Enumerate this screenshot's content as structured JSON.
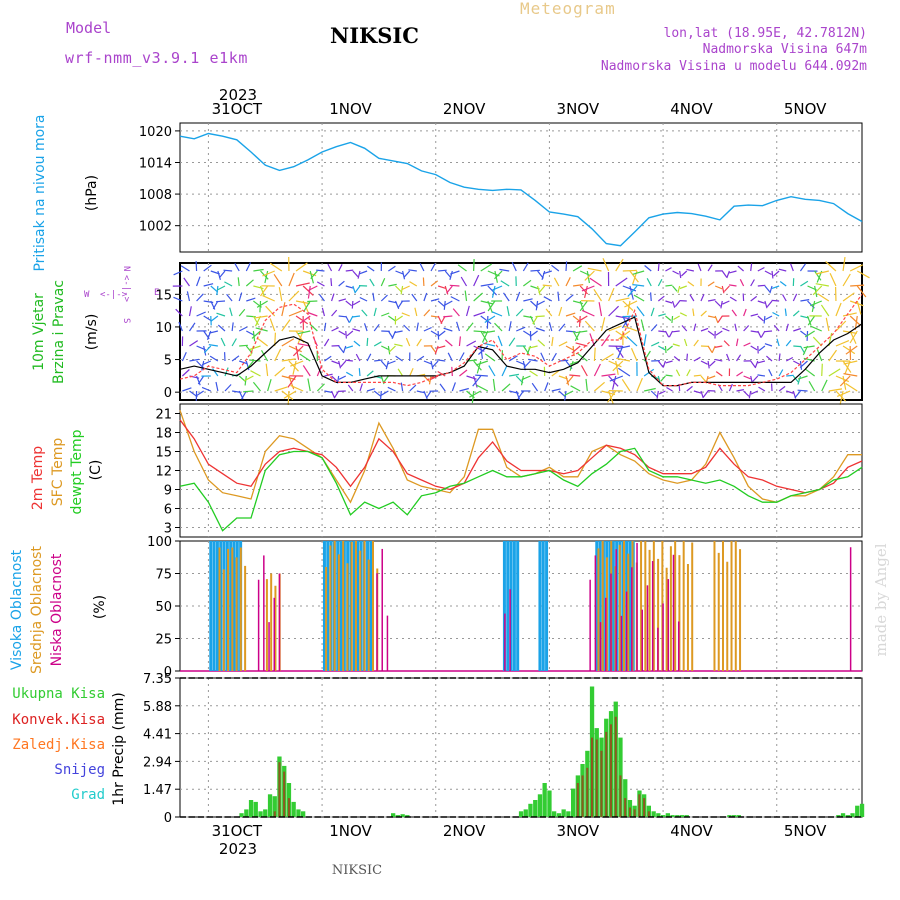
{
  "header": {
    "model_label": "Model",
    "model_name": "wrf-nmm_v3.9.1 e1km",
    "station": "NIKSIC",
    "meteogram_label": "Meteogram",
    "coords": "lon,lat (18.95E, 42.7812N)",
    "elevation": "Nadmorska Visina 647m",
    "model_elevation": "Nadmorska Visina u modelu 644.092m"
  },
  "footer": {
    "station": "NIKSIC",
    "credit": "made by Angel"
  },
  "colors": {
    "pressure": "#1aa3e8",
    "wind_label": "#22bb22",
    "wind_speed": "#000000",
    "gust": "#ff4444",
    "t2m": "#ee3333",
    "sfc": "#dd9922",
    "dewpt": "#22cc22",
    "high_cloud": "#1aa3e8",
    "mid_cloud": "#dd9922",
    "low_cloud": "#cc0088",
    "precip_total": "#33cc33",
    "precip_conv": "#dd2222",
    "precip_frz": "#ff7722",
    "precip_snow": "#4444dd",
    "precip_hail": "#22cccc",
    "compass": "#aa44cc"
  },
  "chart_data": {
    "type": "meteogram",
    "x_axis": {
      "top_year": "2023",
      "bottom_year": "2023",
      "day_ticks": [
        {
          "label": "31OCT",
          "hour": 6
        },
        {
          "label": "1NOV",
          "hour": 30
        },
        {
          "label": "2NOV",
          "hour": 54
        },
        {
          "label": "3NOV",
          "hour": 78
        },
        {
          "label": "4NOV",
          "hour": 102
        },
        {
          "label": "5NOV",
          "hour": 126
        }
      ],
      "start_hour": -6,
      "end_hour": 138,
      "day_starts": [
        0,
        24,
        48,
        72,
        96,
        120
      ]
    },
    "panels": {
      "pressure": {
        "ylabel": "Pritisak na nivou mora",
        "unit": "(hPa)",
        "ylim": [
          997,
          1021.5
        ],
        "ticks": [
          1002,
          1008,
          1014,
          1020
        ],
        "series": {
          "x": [
            -6,
            -3,
            0,
            3,
            6,
            9,
            12,
            15,
            18,
            21,
            24,
            27,
            30,
            33,
            36,
            39,
            42,
            45,
            48,
            51,
            54,
            57,
            60,
            63,
            66,
            69,
            72,
            75,
            78,
            81,
            84,
            87,
            90,
            93,
            96,
            99,
            102,
            105,
            108,
            111,
            114,
            117,
            120,
            123,
            126,
            129,
            132,
            135,
            138
          ],
          "values": [
            1019,
            1018.5,
            1019.5,
            1019,
            1018.3,
            1016,
            1013.5,
            1012.5,
            1013.2,
            1014.5,
            1016,
            1017,
            1017.8,
            1016.7,
            1014.8,
            1014.3,
            1013.8,
            1012.4,
            1011.7,
            1010.2,
            1009.3,
            1008.9,
            1008.7,
            1008.9,
            1008.8,
            1006.8,
            1004.6,
            1004.2,
            1003.7,
            1001.4,
            998.6,
            998.2,
            1000.8,
            1003.5,
            1004.2,
            1004.5,
            1004.3,
            1003.8,
            1003.1,
            1005.7,
            1005.9,
            1005.8,
            1006.8,
            1007.5,
            1007,
            1006.8,
            1006.2,
            1004.3,
            1002.8
          ]
        }
      },
      "wind": {
        "ylabel_line1": "10m Vjetar",
        "ylabel_line2": "Brzina i Pravac",
        "unit": "(m/s)",
        "ylim": [
          -1.2,
          19.8
        ],
        "ticks": [
          0,
          5,
          10,
          15
        ],
        "compass": {
          "n": "N",
          "e": "E",
          "w": "W",
          "s": "S"
        },
        "speed": {
          "x": [
            -6,
            -3,
            0,
            3,
            6,
            9,
            12,
            15,
            18,
            21,
            24,
            27,
            30,
            33,
            36,
            39,
            42,
            45,
            48,
            51,
            54,
            57,
            60,
            63,
            66,
            69,
            72,
            75,
            78,
            81,
            84,
            87,
            90,
            93,
            96,
            99,
            102,
            105,
            108,
            111,
            114,
            117,
            120,
            123,
            126,
            129,
            132,
            135,
            138
          ],
          "values": [
            3.5,
            4,
            3.5,
            3,
            2.5,
            4,
            6,
            8,
            8.5,
            7.5,
            2.5,
            1.5,
            1.5,
            2,
            2.5,
            2.5,
            2.5,
            2.5,
            2.5,
            3,
            4,
            7,
            6.5,
            4,
            3.5,
            3.5,
            3,
            3.5,
            4.5,
            7,
            9.5,
            10.5,
            11.5,
            3,
            1,
            1,
            1.5,
            1.5,
            1.5,
            1.5,
            1.5,
            1.5,
            1.5,
            1.5,
            3.5,
            6,
            8,
            9,
            10.5
          ]
        },
        "gust": {
          "x": [
            -6,
            -3,
            0,
            3,
            6,
            9,
            12,
            15,
            18,
            21,
            24,
            27,
            30,
            33,
            36,
            39,
            42,
            45,
            48,
            51,
            54,
            57,
            60,
            63,
            66,
            69,
            72,
            75,
            78,
            81,
            84,
            87,
            90,
            93,
            96,
            99,
            102,
            105,
            108,
            111,
            114,
            117,
            120,
            123,
            126,
            129,
            132,
            135,
            138
          ],
          "values": [
            2,
            2.5,
            4,
            3.5,
            3,
            6,
            11,
            13,
            13.5,
            12,
            3.5,
            1.5,
            1.5,
            1.5,
            1.5,
            1.5,
            1,
            1.5,
            2.5,
            3,
            4.5,
            7,
            8,
            5,
            6,
            5.5,
            4,
            5,
            6,
            8,
            8,
            8,
            12.5,
            3.5,
            1,
            1,
            1.5,
            1.5,
            1,
            1,
            1,
            1.5,
            2,
            3,
            5,
            7,
            9,
            12,
            15
          ]
        }
      },
      "temperature": {
        "labels": [
          "2m Temp",
          "SFC Temp",
          "dewpt Temp"
        ],
        "unit": "(C)",
        "ylim": [
          1.5,
          22.5
        ],
        "ticks": [
          3,
          6,
          9,
          12,
          15,
          18,
          21
        ],
        "x": [
          -6,
          -3,
          0,
          3,
          6,
          9,
          12,
          15,
          18,
          21,
          24,
          27,
          30,
          33,
          36,
          39,
          42,
          45,
          48,
          51,
          54,
          57,
          60,
          63,
          66,
          69,
          72,
          75,
          78,
          81,
          84,
          87,
          90,
          93,
          96,
          99,
          102,
          105,
          108,
          111,
          114,
          117,
          120,
          123,
          126,
          129,
          132,
          135,
          138
        ],
        "t2m": [
          20,
          17,
          13,
          11.5,
          10,
          9.5,
          13,
          15,
          15.5,
          15,
          14.5,
          12.5,
          9.5,
          12.5,
          17,
          15,
          11.5,
          10.5,
          9.5,
          9,
          10,
          14,
          16.5,
          13.5,
          12,
          12,
          12,
          11.5,
          12,
          14,
          16,
          15.5,
          14.5,
          12.5,
          11.5,
          11.5,
          11.5,
          12.5,
          15.5,
          13,
          11,
          10.5,
          9.5,
          9,
          8.5,
          9,
          10,
          12.5,
          13.5
        ],
        "sfc": [
          21.5,
          15,
          10.5,
          8.5,
          8,
          7.5,
          15,
          17.5,
          17,
          15.5,
          14,
          10.5,
          7,
          12,
          19.5,
          15.5,
          10.5,
          9.5,
          9,
          8.5,
          11,
          18.5,
          18.5,
          12.5,
          11,
          11.5,
          12.5,
          11,
          11,
          15,
          16,
          14.5,
          13.5,
          11.5,
          10.5,
          10,
          10.5,
          13,
          18,
          14,
          9.5,
          7.5,
          7,
          8,
          8,
          9,
          11,
          14.5,
          14.5
        ],
        "dewpt": [
          9.5,
          10,
          7,
          2.5,
          4.5,
          4.5,
          12,
          14.5,
          15,
          15,
          14,
          10,
          5,
          7,
          6,
          7,
          5,
          8,
          8.5,
          9.5,
          10,
          11,
          12,
          11,
          11,
          11.5,
          12,
          10.5,
          9.5,
          11.5,
          13,
          15,
          15.5,
          12,
          11,
          11,
          10.5,
          10,
          10.5,
          9.5,
          8,
          7,
          7,
          8,
          8.5,
          9,
          10.5,
          11,
          12.5
        ]
      },
      "clouds": {
        "labels": [
          "Visoka Oblacnost",
          "Srednja Oblacnost",
          "Niska Oblacnost"
        ],
        "unit": "(%)",
        "ylim": [
          0,
          100
        ],
        "ticks": [
          0,
          25,
          50,
          75,
          100
        ],
        "high_ranges": [
          [
            0.5,
            7.5
          ],
          [
            24.5,
            34.5
          ],
          [
            62.5,
            66
          ],
          [
            70,
            71.5
          ],
          [
            82,
            90
          ]
        ],
        "mid_ranges": [
          [
            2,
            8.5
          ],
          [
            12,
            15.5
          ],
          [
            24.5,
            36
          ],
          [
            82,
            103
          ],
          [
            106.5,
            112.5
          ]
        ],
        "mid_height": [
          95,
          75,
          100,
          100,
          100
        ],
        "low_ranges": [
          [
            10,
            16
          ],
          [
            35,
            38
          ],
          [
            62,
            64
          ],
          [
            80,
            100
          ],
          [
            120.5,
            121
          ],
          [
            135,
            136
          ]
        ]
      },
      "precip": {
        "labels": [
          "Ukupna Kisa",
          "Konvek.Kisa",
          "Zaledj.Kisa",
          "Snijeg",
          "Grad"
        ],
        "unit": "1hr Precip (mm)",
        "ylim": [
          0,
          7.35
        ],
        "ticks": [
          0,
          1.47,
          2.94,
          4.41,
          5.88,
          7.35
        ],
        "total": {
          "x": [
            7,
            8,
            9,
            10,
            11,
            12,
            13,
            14,
            15,
            16,
            17,
            18,
            19,
            20,
            39,
            40,
            41,
            42,
            66,
            67,
            68,
            69,
            70,
            71,
            72,
            73,
            74,
            75,
            76,
            77,
            78,
            79,
            80,
            81,
            82,
            83,
            84,
            85,
            86,
            87,
            88,
            89,
            90,
            91,
            92,
            93,
            94,
            95,
            96,
            97,
            98,
            99,
            100,
            101,
            110,
            111,
            112,
            133,
            134,
            135,
            136,
            137,
            138
          ],
          "values": [
            0.2,
            0.4,
            0.9,
            0.8,
            0.3,
            0.4,
            1.2,
            1.1,
            3.2,
            2.7,
            1.8,
            0.8,
            0.4,
            0.3,
            0.2,
            0.1,
            0.15,
            0.1,
            0.3,
            0.4,
            0.7,
            0.9,
            1.2,
            1.8,
            1.4,
            0.3,
            0.2,
            0.4,
            0.3,
            1.5,
            2.2,
            2.8,
            3.5,
            6.9,
            4.7,
            4.2,
            5.2,
            5.6,
            6.1,
            4.2,
            2.0,
            0.9,
            0.6,
            1.4,
            1.2,
            0.6,
            0.3,
            0.2,
            0.1,
            0.2,
            0.1,
            0.1,
            0.1,
            0.1,
            0.1,
            0.1,
            0.1,
            0.1,
            0.2,
            0.1,
            0.2,
            0.6,
            0.7
          ]
        },
        "conv": {
          "x": [
            14,
            15,
            16,
            17,
            78,
            79,
            80,
            81,
            82,
            83,
            84,
            85,
            86,
            87,
            88,
            89,
            90,
            91,
            92,
            93
          ],
          "values": [
            0.3,
            2.9,
            2.4,
            1.0,
            1.8,
            2.2,
            2.6,
            4.2,
            4.1,
            3.5,
            4.5,
            4.9,
            5.3,
            2.2,
            1.0,
            0.5,
            0.4,
            1.2,
            1.0,
            0.3
          ]
        }
      }
    }
  }
}
